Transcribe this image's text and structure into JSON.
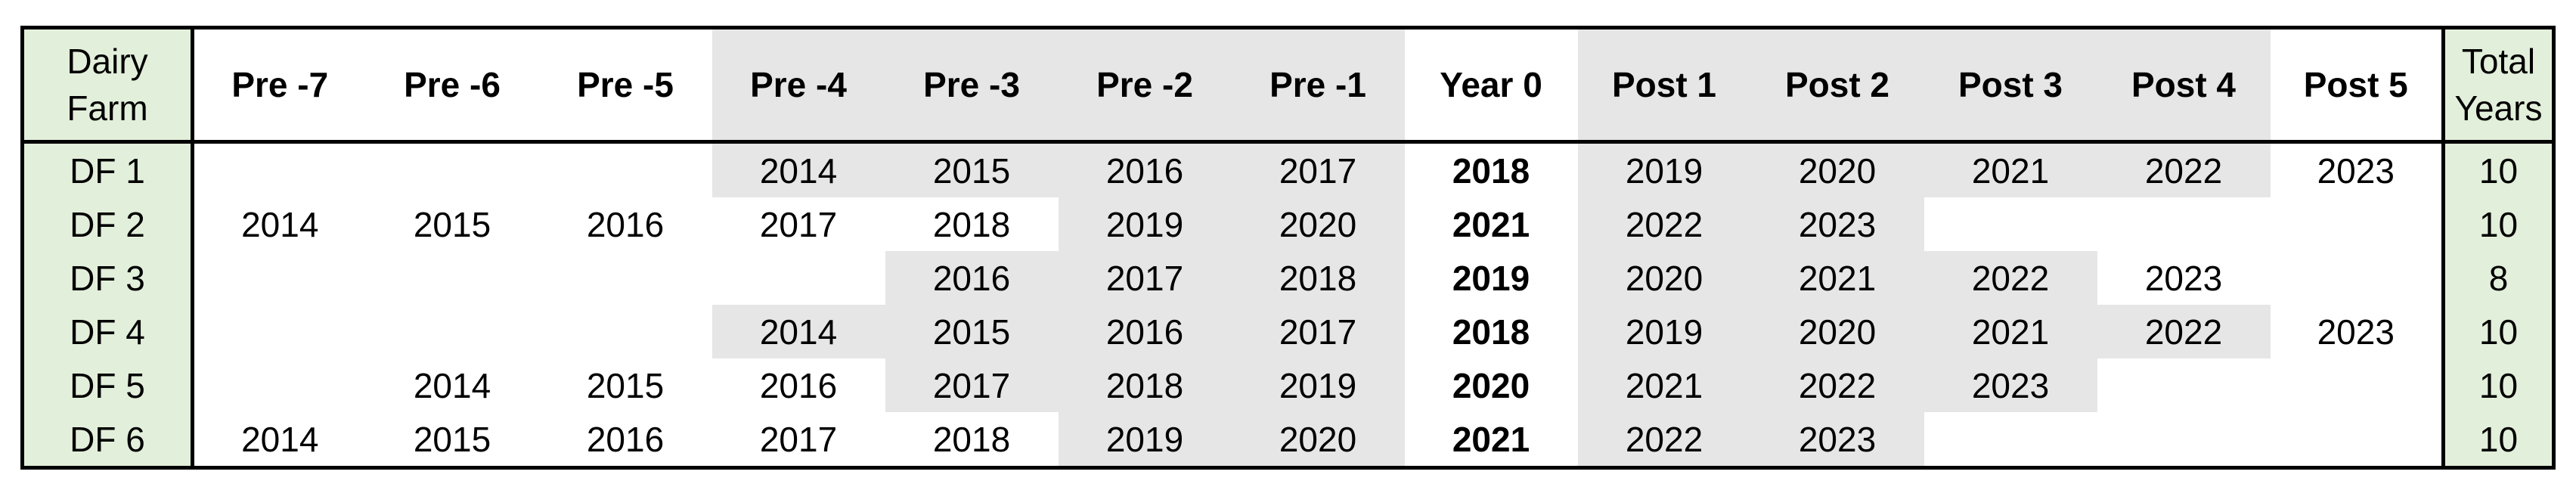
{
  "colors": {
    "period_shade": "#e6e6e6",
    "label_columns": "#e2efda",
    "border": "#000000"
  },
  "header": {
    "farm_label_line1": "Dairy",
    "farm_label_line2": "Farm",
    "total_label_line1": "Total",
    "total_label_line2": "Years",
    "columns": [
      {
        "label": "Pre -7",
        "shaded": false
      },
      {
        "label": "Pre -6",
        "shaded": false
      },
      {
        "label": "Pre -5",
        "shaded": false
      },
      {
        "label": "Pre -4",
        "shaded": true
      },
      {
        "label": "Pre -3",
        "shaded": true
      },
      {
        "label": "Pre -2",
        "shaded": true
      },
      {
        "label": "Pre -1",
        "shaded": true
      },
      {
        "label": "Year 0",
        "shaded": false
      },
      {
        "label": "Post 1",
        "shaded": true
      },
      {
        "label": "Post 2",
        "shaded": true
      },
      {
        "label": "Post 3",
        "shaded": true
      },
      {
        "label": "Post 4",
        "shaded": true
      },
      {
        "label": "Post 5",
        "shaded": false
      }
    ]
  },
  "rows": [
    {
      "farm": "DF 1",
      "total": "10",
      "cells": [
        {
          "v": "",
          "s": false
        },
        {
          "v": "",
          "s": false
        },
        {
          "v": "",
          "s": false
        },
        {
          "v": "2014",
          "s": true
        },
        {
          "v": "2015",
          "s": true
        },
        {
          "v": "2016",
          "s": true
        },
        {
          "v": "2017",
          "s": true
        },
        {
          "v": "2018",
          "s": false
        },
        {
          "v": "2019",
          "s": true
        },
        {
          "v": "2020",
          "s": true
        },
        {
          "v": "2021",
          "s": true
        },
        {
          "v": "2022",
          "s": true
        },
        {
          "v": "2023",
          "s": false
        }
      ]
    },
    {
      "farm": "DF 2",
      "total": "10",
      "cells": [
        {
          "v": "2014",
          "s": false
        },
        {
          "v": "2015",
          "s": false
        },
        {
          "v": "2016",
          "s": false
        },
        {
          "v": "2017",
          "s": false
        },
        {
          "v": "2018",
          "s": false
        },
        {
          "v": "2019",
          "s": true
        },
        {
          "v": "2020",
          "s": true
        },
        {
          "v": "2021",
          "s": false
        },
        {
          "v": "2022",
          "s": true
        },
        {
          "v": "2023",
          "s": true
        },
        {
          "v": "",
          "s": false
        },
        {
          "v": "",
          "s": false
        },
        {
          "v": "",
          "s": false
        }
      ]
    },
    {
      "farm": "DF 3",
      "total": "8",
      "cells": [
        {
          "v": "",
          "s": false
        },
        {
          "v": "",
          "s": false
        },
        {
          "v": "",
          "s": false
        },
        {
          "v": "",
          "s": false
        },
        {
          "v": "2016",
          "s": true
        },
        {
          "v": "2017",
          "s": true
        },
        {
          "v": "2018",
          "s": true
        },
        {
          "v": "2019",
          "s": false
        },
        {
          "v": "2020",
          "s": true
        },
        {
          "v": "2021",
          "s": true
        },
        {
          "v": "2022",
          "s": true
        },
        {
          "v": "2023",
          "s": false
        },
        {
          "v": "",
          "s": false
        }
      ]
    },
    {
      "farm": "DF 4",
      "total": "10",
      "cells": [
        {
          "v": "",
          "s": false
        },
        {
          "v": "",
          "s": false
        },
        {
          "v": "",
          "s": false
        },
        {
          "v": "2014",
          "s": true
        },
        {
          "v": "2015",
          "s": true
        },
        {
          "v": "2016",
          "s": true
        },
        {
          "v": "2017",
          "s": true
        },
        {
          "v": "2018",
          "s": false
        },
        {
          "v": "2019",
          "s": true
        },
        {
          "v": "2020",
          "s": true
        },
        {
          "v": "2021",
          "s": true
        },
        {
          "v": "2022",
          "s": true
        },
        {
          "v": "2023",
          "s": false
        }
      ]
    },
    {
      "farm": "DF 5",
      "total": "10",
      "cells": [
        {
          "v": "",
          "s": false
        },
        {
          "v": "2014",
          "s": false
        },
        {
          "v": "2015",
          "s": false
        },
        {
          "v": "2016",
          "s": false
        },
        {
          "v": "2017",
          "s": true
        },
        {
          "v": "2018",
          "s": true
        },
        {
          "v": "2019",
          "s": true
        },
        {
          "v": "2020",
          "s": false
        },
        {
          "v": "2021",
          "s": true
        },
        {
          "v": "2022",
          "s": true
        },
        {
          "v": "2023",
          "s": true
        },
        {
          "v": "",
          "s": false
        },
        {
          "v": "",
          "s": false
        }
      ]
    },
    {
      "farm": "DF 6",
      "total": "10",
      "cells": [
        {
          "v": "2014",
          "s": false
        },
        {
          "v": "2015",
          "s": false
        },
        {
          "v": "2016",
          "s": false
        },
        {
          "v": "2017",
          "s": false
        },
        {
          "v": "2018",
          "s": false
        },
        {
          "v": "2019",
          "s": true
        },
        {
          "v": "2020",
          "s": true
        },
        {
          "v": "2021",
          "s": false
        },
        {
          "v": "2022",
          "s": true
        },
        {
          "v": "2023",
          "s": true
        },
        {
          "v": "",
          "s": false
        },
        {
          "v": "",
          "s": false
        },
        {
          "v": "",
          "s": false
        }
      ]
    }
  ]
}
